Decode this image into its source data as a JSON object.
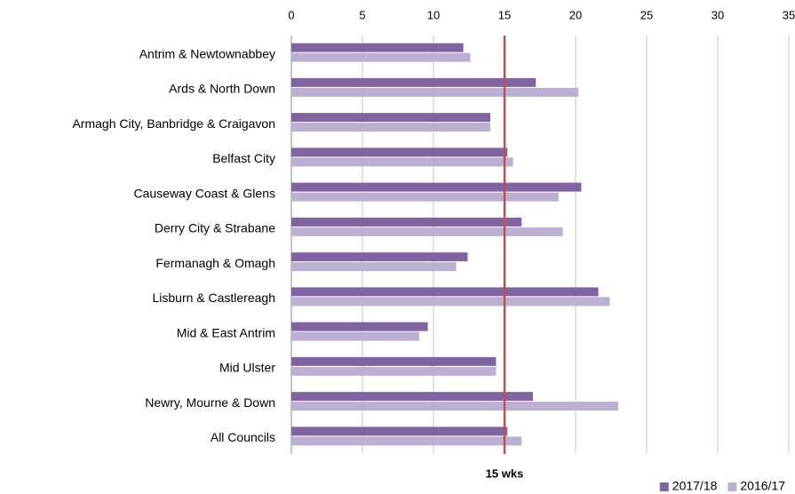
{
  "chart_data": {
    "type": "bar",
    "orientation": "horizontal",
    "categories": [
      "Antrim & Newtownabbey",
      "Ards & North Down",
      "Armagh City, Banbridge & Craigavon",
      "Belfast City",
      "Causeway Coast & Glens",
      "Derry City & Strabane",
      "Fermanagh & Omagh",
      "Lisburn & Castlereagh",
      "Mid & East Antrim",
      "Mid Ulster",
      "Newry, Mourne & Down",
      "All Councils"
    ],
    "series": [
      {
        "name": "2017/18",
        "color": "#8064a2",
        "values": [
          12.1,
          17.2,
          14.0,
          15.2,
          20.4,
          16.2,
          12.4,
          21.6,
          9.6,
          14.4,
          17.0,
          15.2
        ]
      },
      {
        "name": "2016/17",
        "color": "#bcb0d2",
        "values": [
          12.6,
          20.2,
          14.0,
          15.6,
          18.8,
          19.1,
          11.6,
          22.4,
          9.0,
          14.4,
          23.0,
          16.2
        ]
      }
    ],
    "xlim": [
      0,
      35
    ],
    "xticks": [
      0,
      5,
      10,
      15,
      20,
      25,
      30,
      35
    ],
    "grid": true,
    "reference_line": {
      "value": 15,
      "label": "15 wks",
      "color": "#c0504d"
    },
    "legend": "bottom-right"
  }
}
